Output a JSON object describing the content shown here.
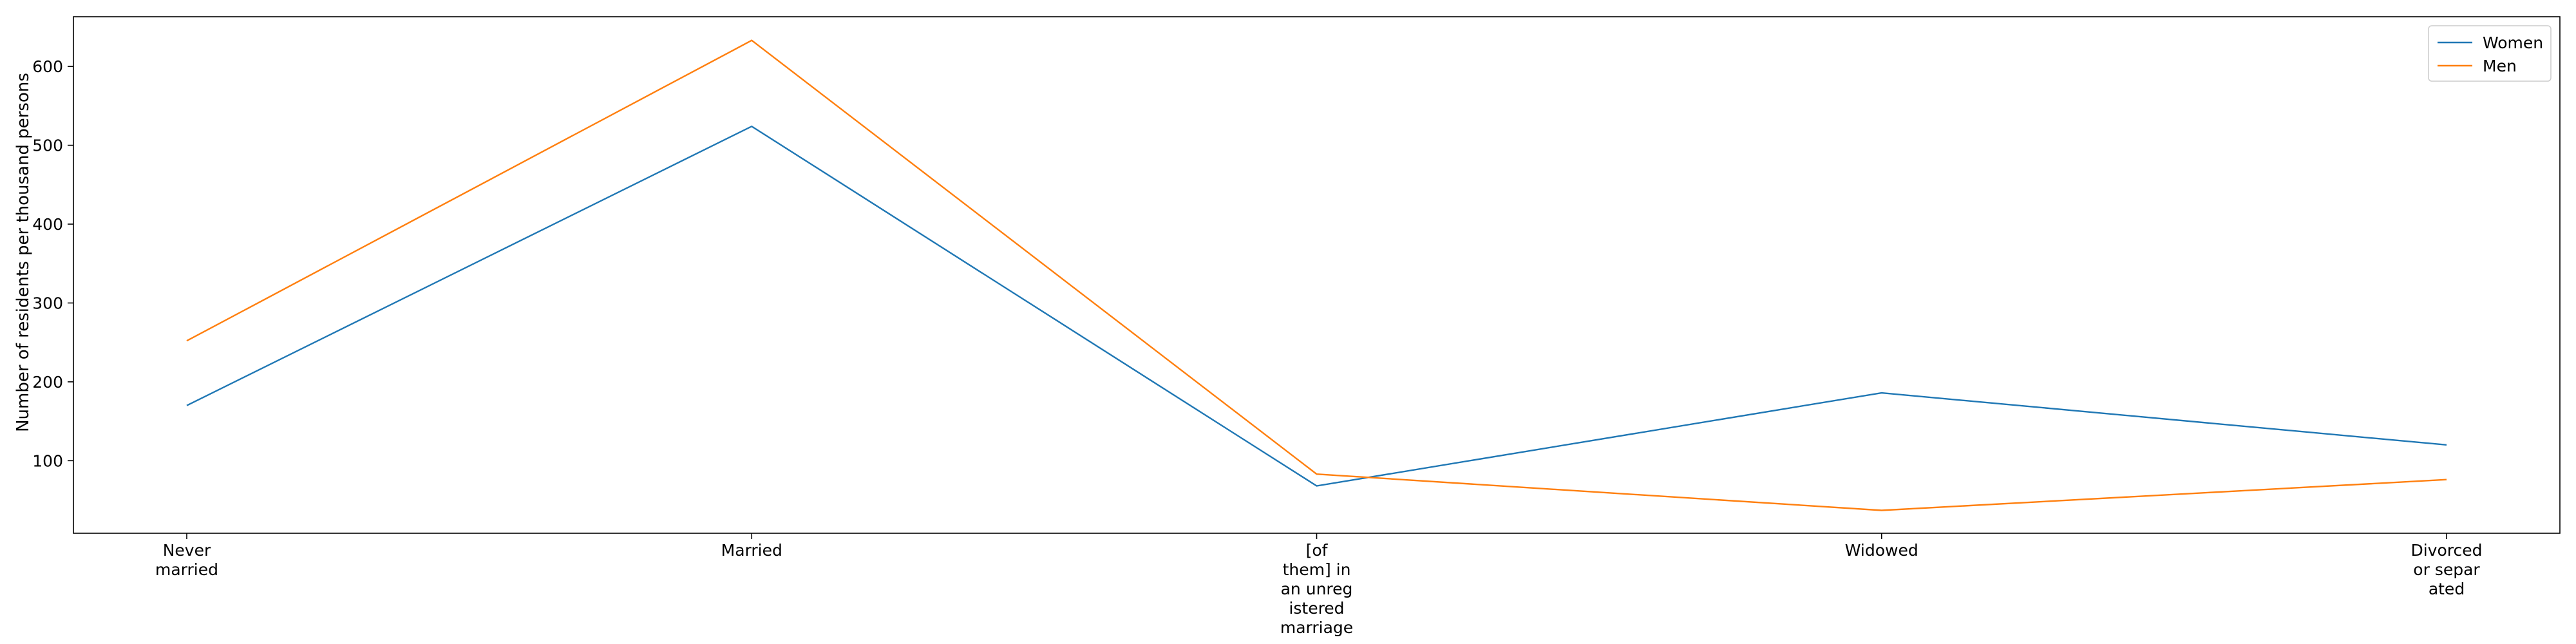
{
  "chart_data": {
    "type": "line",
    "categories": [
      [
        "Never",
        "married"
      ],
      [
        "Married"
      ],
      [
        "[of",
        "them] in",
        "an unreg",
        "istered",
        "marriage"
      ],
      [
        "Widowed"
      ],
      [
        "Divorced",
        "or separ",
        "ated"
      ]
    ],
    "series": [
      {
        "name": "Women",
        "color": "#1f77b4",
        "values": [
          170,
          524,
          68,
          186,
          120
        ]
      },
      {
        "name": "Men",
        "color": "#ff7f0e",
        "values": [
          252,
          633,
          83,
          37,
          76
        ]
      }
    ],
    "ylabel": "Number of residents per thousand persons",
    "xlabel": "",
    "title": "",
    "ylim": [
      8.0,
      663.0
    ],
    "yticks": [
      100,
      200,
      300,
      400,
      500,
      600
    ],
    "grid": false,
    "legend_position": "top-right"
  }
}
